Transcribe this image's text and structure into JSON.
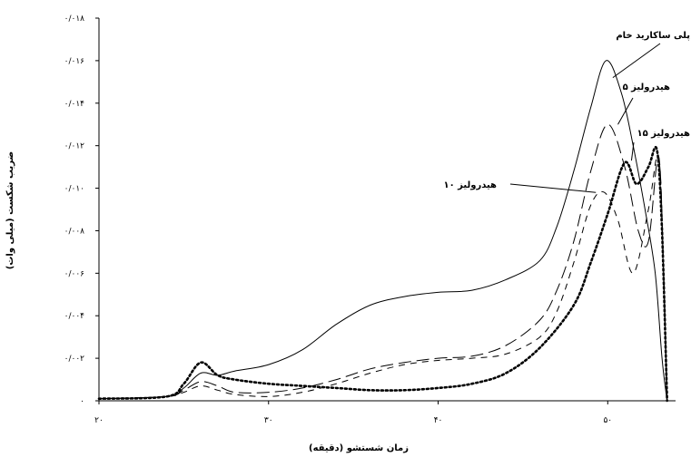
{
  "chart_data": {
    "type": "line",
    "xlabel": "زمان شستشو (دقیقه)",
    "ylabel": "ضریب شکست (میلی وات)",
    "xlim": [
      20,
      54
    ],
    "ylim": [
      0,
      0.018
    ],
    "grid": false,
    "x_ticks": [
      20,
      30,
      40,
      50
    ],
    "x_tick_labels": [
      "۲۰",
      "۳۰",
      "۴۰",
      "۵۰"
    ],
    "y_ticks": [
      0,
      0.002,
      0.004,
      0.006,
      0.008,
      0.01,
      0.012,
      0.014,
      0.016,
      0.018
    ],
    "y_tick_labels": [
      "۰",
      "۰/۰۰۲",
      "۰/۰۰۴",
      "۰/۰۰۶",
      "۰/۰۰۸",
      "۰/۰۱۰",
      "۰/۰۱۲",
      "۰/۰۱۴",
      "۰/۰۱۶",
      "۰/۰۱۸"
    ],
    "series": [
      {
        "name": "پلی ساکارید خام",
        "style": "solid",
        "points": [
          [
            20,
            0.0001
          ],
          [
            24,
            0.0002
          ],
          [
            25,
            0.0006
          ],
          [
            26,
            0.0013
          ],
          [
            27,
            0.0012
          ],
          [
            28,
            0.0014
          ],
          [
            30,
            0.0017
          ],
          [
            32,
            0.0024
          ],
          [
            34,
            0.0036
          ],
          [
            36,
            0.0045
          ],
          [
            38,
            0.0049
          ],
          [
            40,
            0.0051
          ],
          [
            42,
            0.0052
          ],
          [
            44,
            0.0057
          ],
          [
            46,
            0.0066
          ],
          [
            47,
            0.0082
          ],
          [
            48,
            0.0108
          ],
          [
            49,
            0.0138
          ],
          [
            49.9,
            0.016
          ],
          [
            50.8,
            0.0145
          ],
          [
            51.5,
            0.012
          ],
          [
            52.2,
            0.009
          ],
          [
            52.8,
            0.006
          ],
          [
            53.2,
            0.002
          ],
          [
            53.5,
            0.0
          ]
        ]
      },
      {
        "name": "هیدرولیز ۵",
        "style": "long-dash",
        "points": [
          [
            20,
            0.0001
          ],
          [
            24,
            0.0002
          ],
          [
            25,
            0.0005
          ],
          [
            26,
            0.0009
          ],
          [
            27,
            0.0007
          ],
          [
            28,
            0.0004
          ],
          [
            30,
            0.0004
          ],
          [
            32,
            0.0006
          ],
          [
            34,
            0.001
          ],
          [
            36,
            0.0015
          ],
          [
            38,
            0.0018
          ],
          [
            40,
            0.002
          ],
          [
            42,
            0.0021
          ],
          [
            44,
            0.0026
          ],
          [
            46,
            0.0038
          ],
          [
            47,
            0.0052
          ],
          [
            48,
            0.0075
          ],
          [
            49,
            0.0108
          ],
          [
            50,
            0.013
          ],
          [
            51,
            0.011
          ],
          [
            51.8,
            0.008
          ],
          [
            52.4,
            0.0075
          ],
          [
            53,
            0.0115
          ],
          [
            53.3,
            0.006
          ],
          [
            53.5,
            0.0
          ]
        ]
      },
      {
        "name": "هیدرولیز ۱۰",
        "style": "short-dash",
        "points": [
          [
            20,
            0.0001
          ],
          [
            24,
            0.0002
          ],
          [
            25,
            0.0004
          ],
          [
            26,
            0.0007
          ],
          [
            27,
            0.0005
          ],
          [
            28,
            0.0003
          ],
          [
            30,
            0.0002
          ],
          [
            32,
            0.0004
          ],
          [
            34,
            0.0008
          ],
          [
            36,
            0.0013
          ],
          [
            38,
            0.0017
          ],
          [
            40,
            0.0019
          ],
          [
            42,
            0.002
          ],
          [
            44,
            0.0022
          ],
          [
            46,
            0.003
          ],
          [
            47,
            0.0042
          ],
          [
            48,
            0.0065
          ],
          [
            49,
            0.0092
          ],
          [
            49.8,
            0.0098
          ],
          [
            50.6,
            0.0085
          ],
          [
            51.5,
            0.006
          ],
          [
            52.4,
            0.009
          ],
          [
            53,
            0.0115
          ],
          [
            53.3,
            0.006
          ],
          [
            53.5,
            0.0
          ]
        ]
      },
      {
        "name": "هیدرولیز ۱۵",
        "style": "dotted",
        "points": [
          [
            20,
            0.0001
          ],
          [
            24,
            0.0002
          ],
          [
            25,
            0.0008
          ],
          [
            26,
            0.0018
          ],
          [
            27,
            0.0012
          ],
          [
            28,
            0.001
          ],
          [
            30,
            0.0008
          ],
          [
            32,
            0.0007
          ],
          [
            34,
            0.0006
          ],
          [
            36,
            0.0005
          ],
          [
            38,
            0.0005
          ],
          [
            40,
            0.0006
          ],
          [
            42,
            0.0008
          ],
          [
            44,
            0.0013
          ],
          [
            46,
            0.0025
          ],
          [
            48,
            0.0045
          ],
          [
            49,
            0.0065
          ],
          [
            50,
            0.0088
          ],
          [
            51,
            0.0112
          ],
          [
            51.7,
            0.0102
          ],
          [
            52.4,
            0.011
          ],
          [
            52.9,
            0.0118
          ],
          [
            53.2,
            0.008
          ],
          [
            53.5,
            0.0
          ]
        ]
      }
    ],
    "annotations": [
      {
        "text": "پلی ساکارید خام",
        "target": [
          50.3,
          0.0152
        ]
      },
      {
        "text": "هیدرولیز ۵",
        "target": [
          50.6,
          0.013
        ]
      },
      {
        "text": "هیدرولیز ۱۵",
        "target": [
          51.4,
          0.0113
        ]
      },
      {
        "text": "هیدرولیز ۱۰",
        "target": [
          49.3,
          0.0098
        ]
      }
    ]
  }
}
